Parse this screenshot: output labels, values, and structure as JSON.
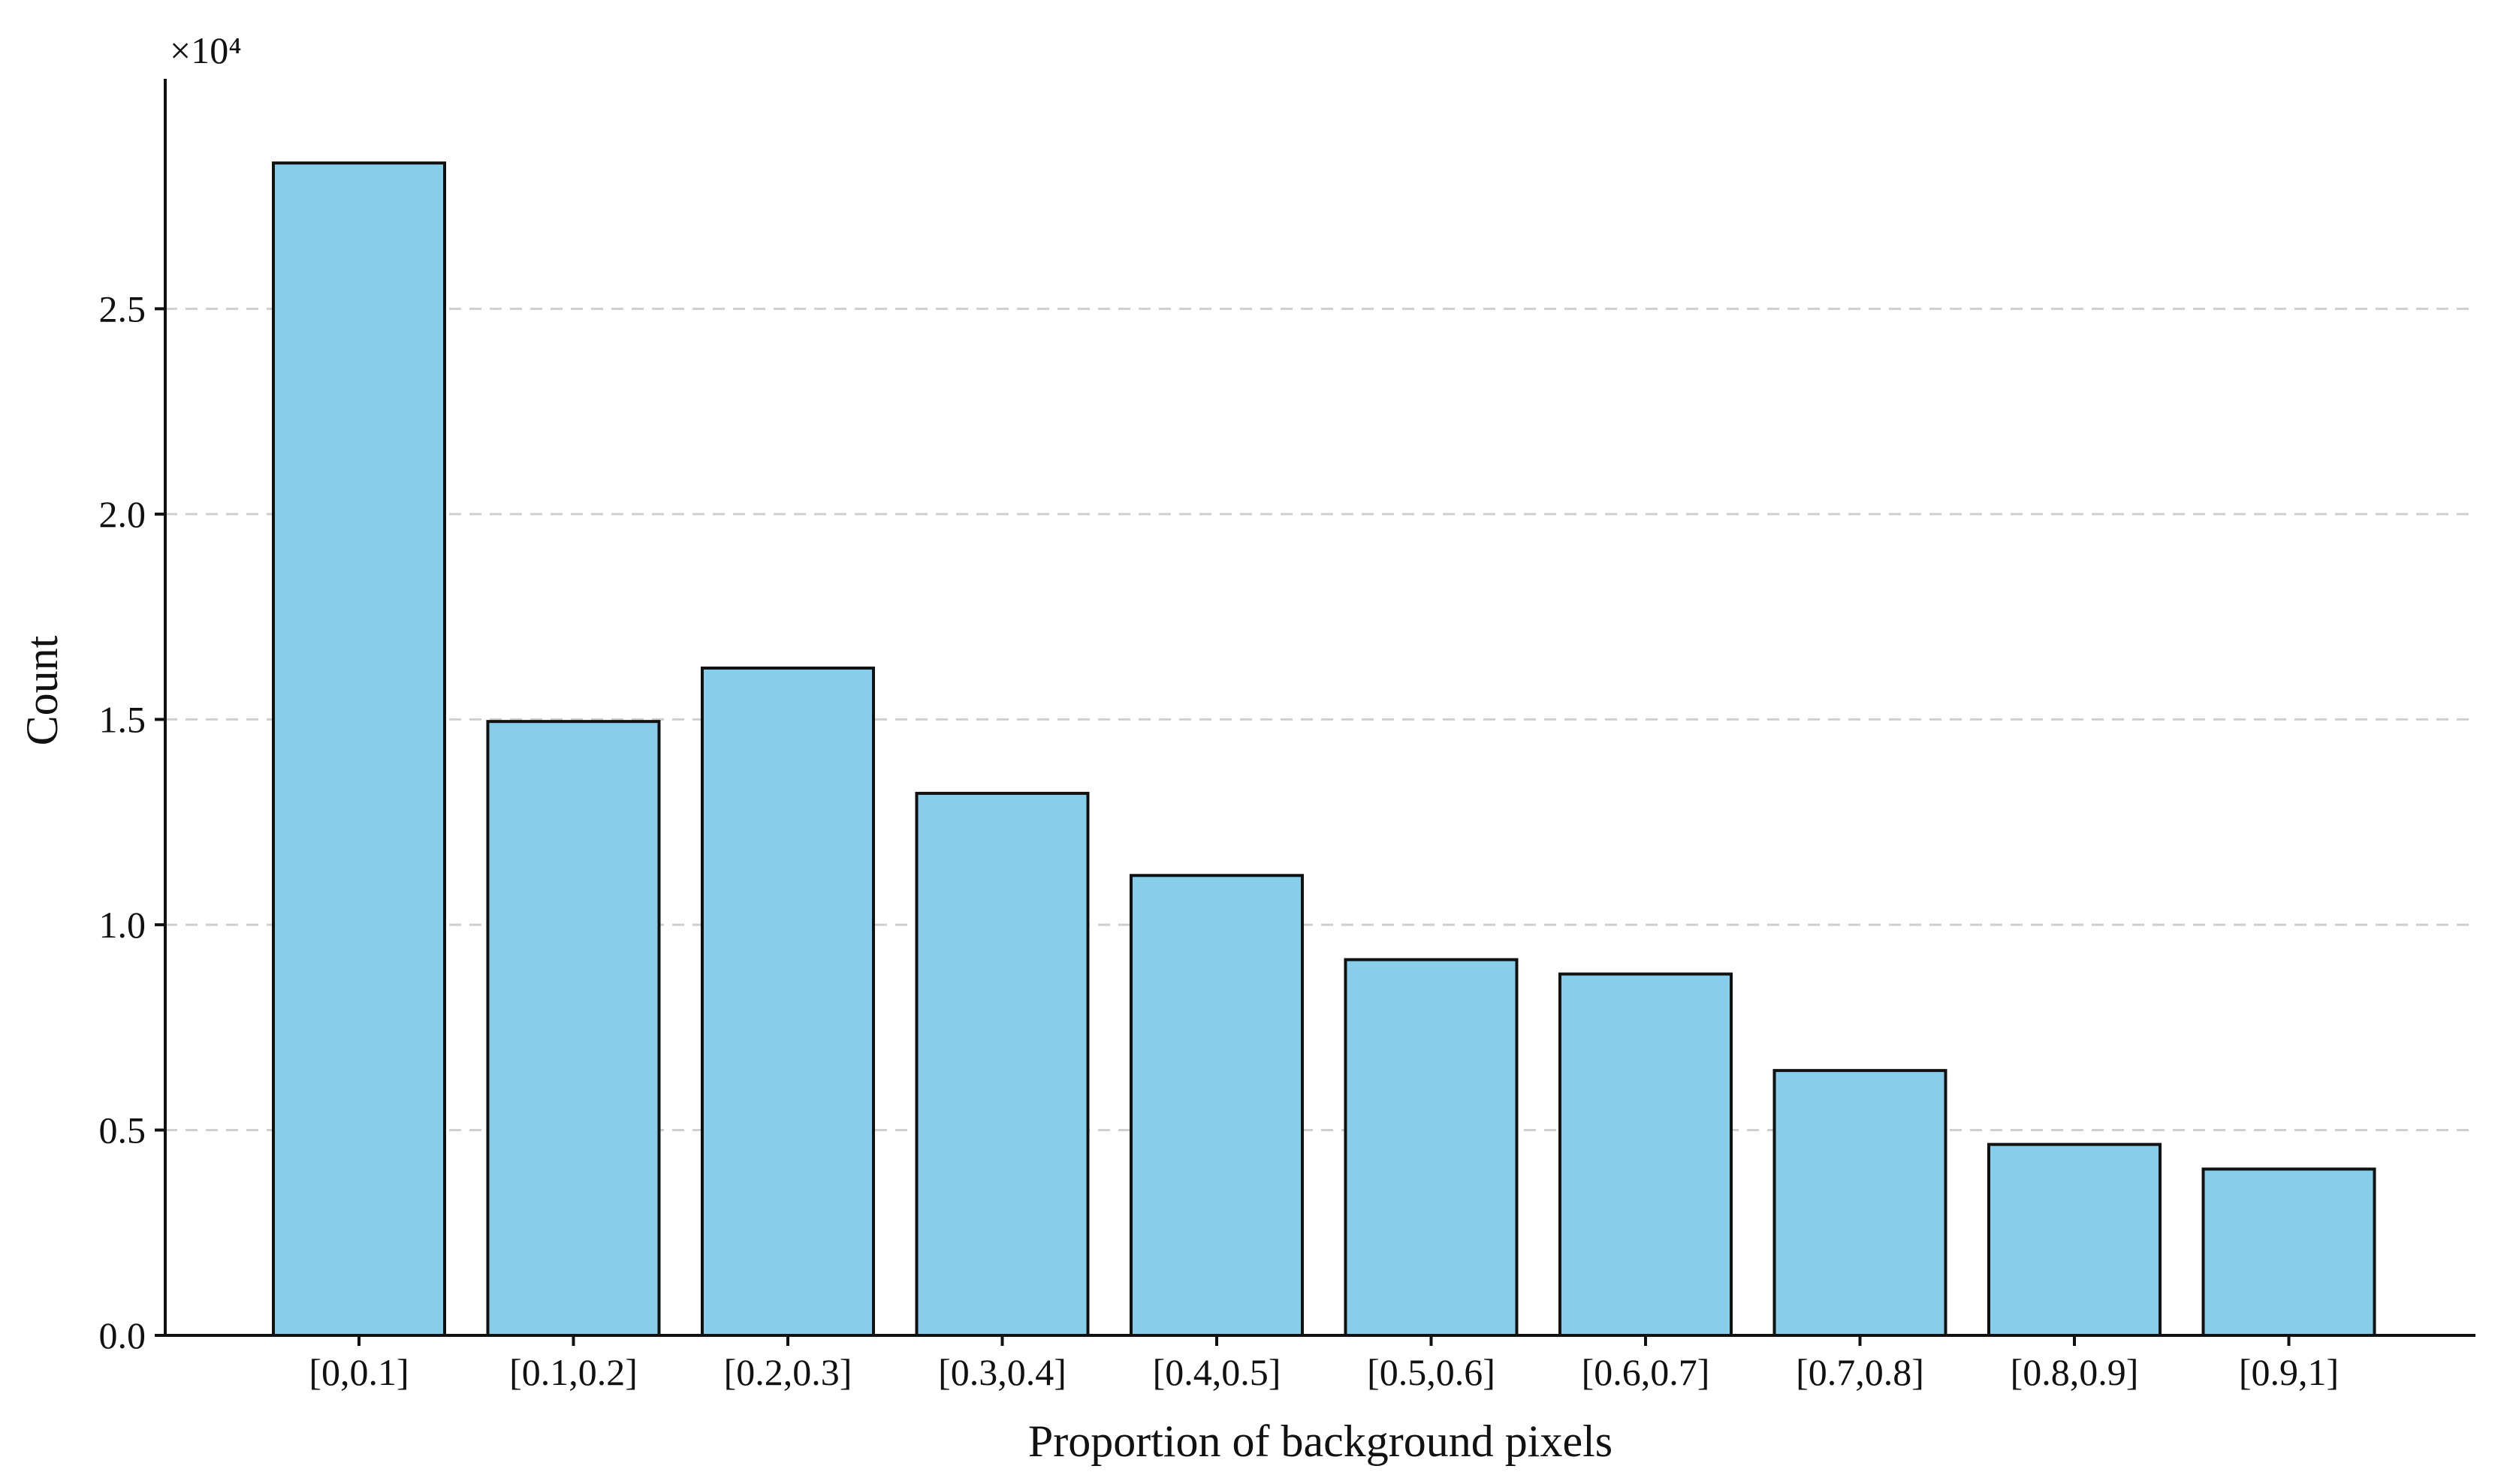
{
  "chart_data": {
    "type": "bar",
    "categories": [
      "[0,0.1]",
      "[0.1,0.2]",
      "[0.2,0.3]",
      "[0.3,0.4]",
      "[0.4,0.5]",
      "[0.5,0.6]",
      "[0.6,0.7]",
      "[0.7,0.8]",
      "[0.8,0.9]",
      "[0.9,1]"
    ],
    "values": [
      28550,
      14950,
      16250,
      13200,
      11200,
      9150,
      8800,
      6450,
      4650,
      4050
    ],
    "xlabel": "Proportion of background pixels",
    "ylabel": "Count",
    "y_multiplier_label": "×10⁴",
    "y_tick_values": [
      0,
      0.5,
      1.0,
      1.5,
      2.0,
      2.5
    ],
    "y_tick_labels": [
      "0.0",
      "0.5",
      "1.0",
      "1.5",
      "2.0",
      "2.5"
    ],
    "y_scale": 10000,
    "ylim": [
      0,
      30600
    ],
    "grid": "horizontal dashed",
    "bar_color": "#87CEEB",
    "edge_color": "#111111"
  }
}
